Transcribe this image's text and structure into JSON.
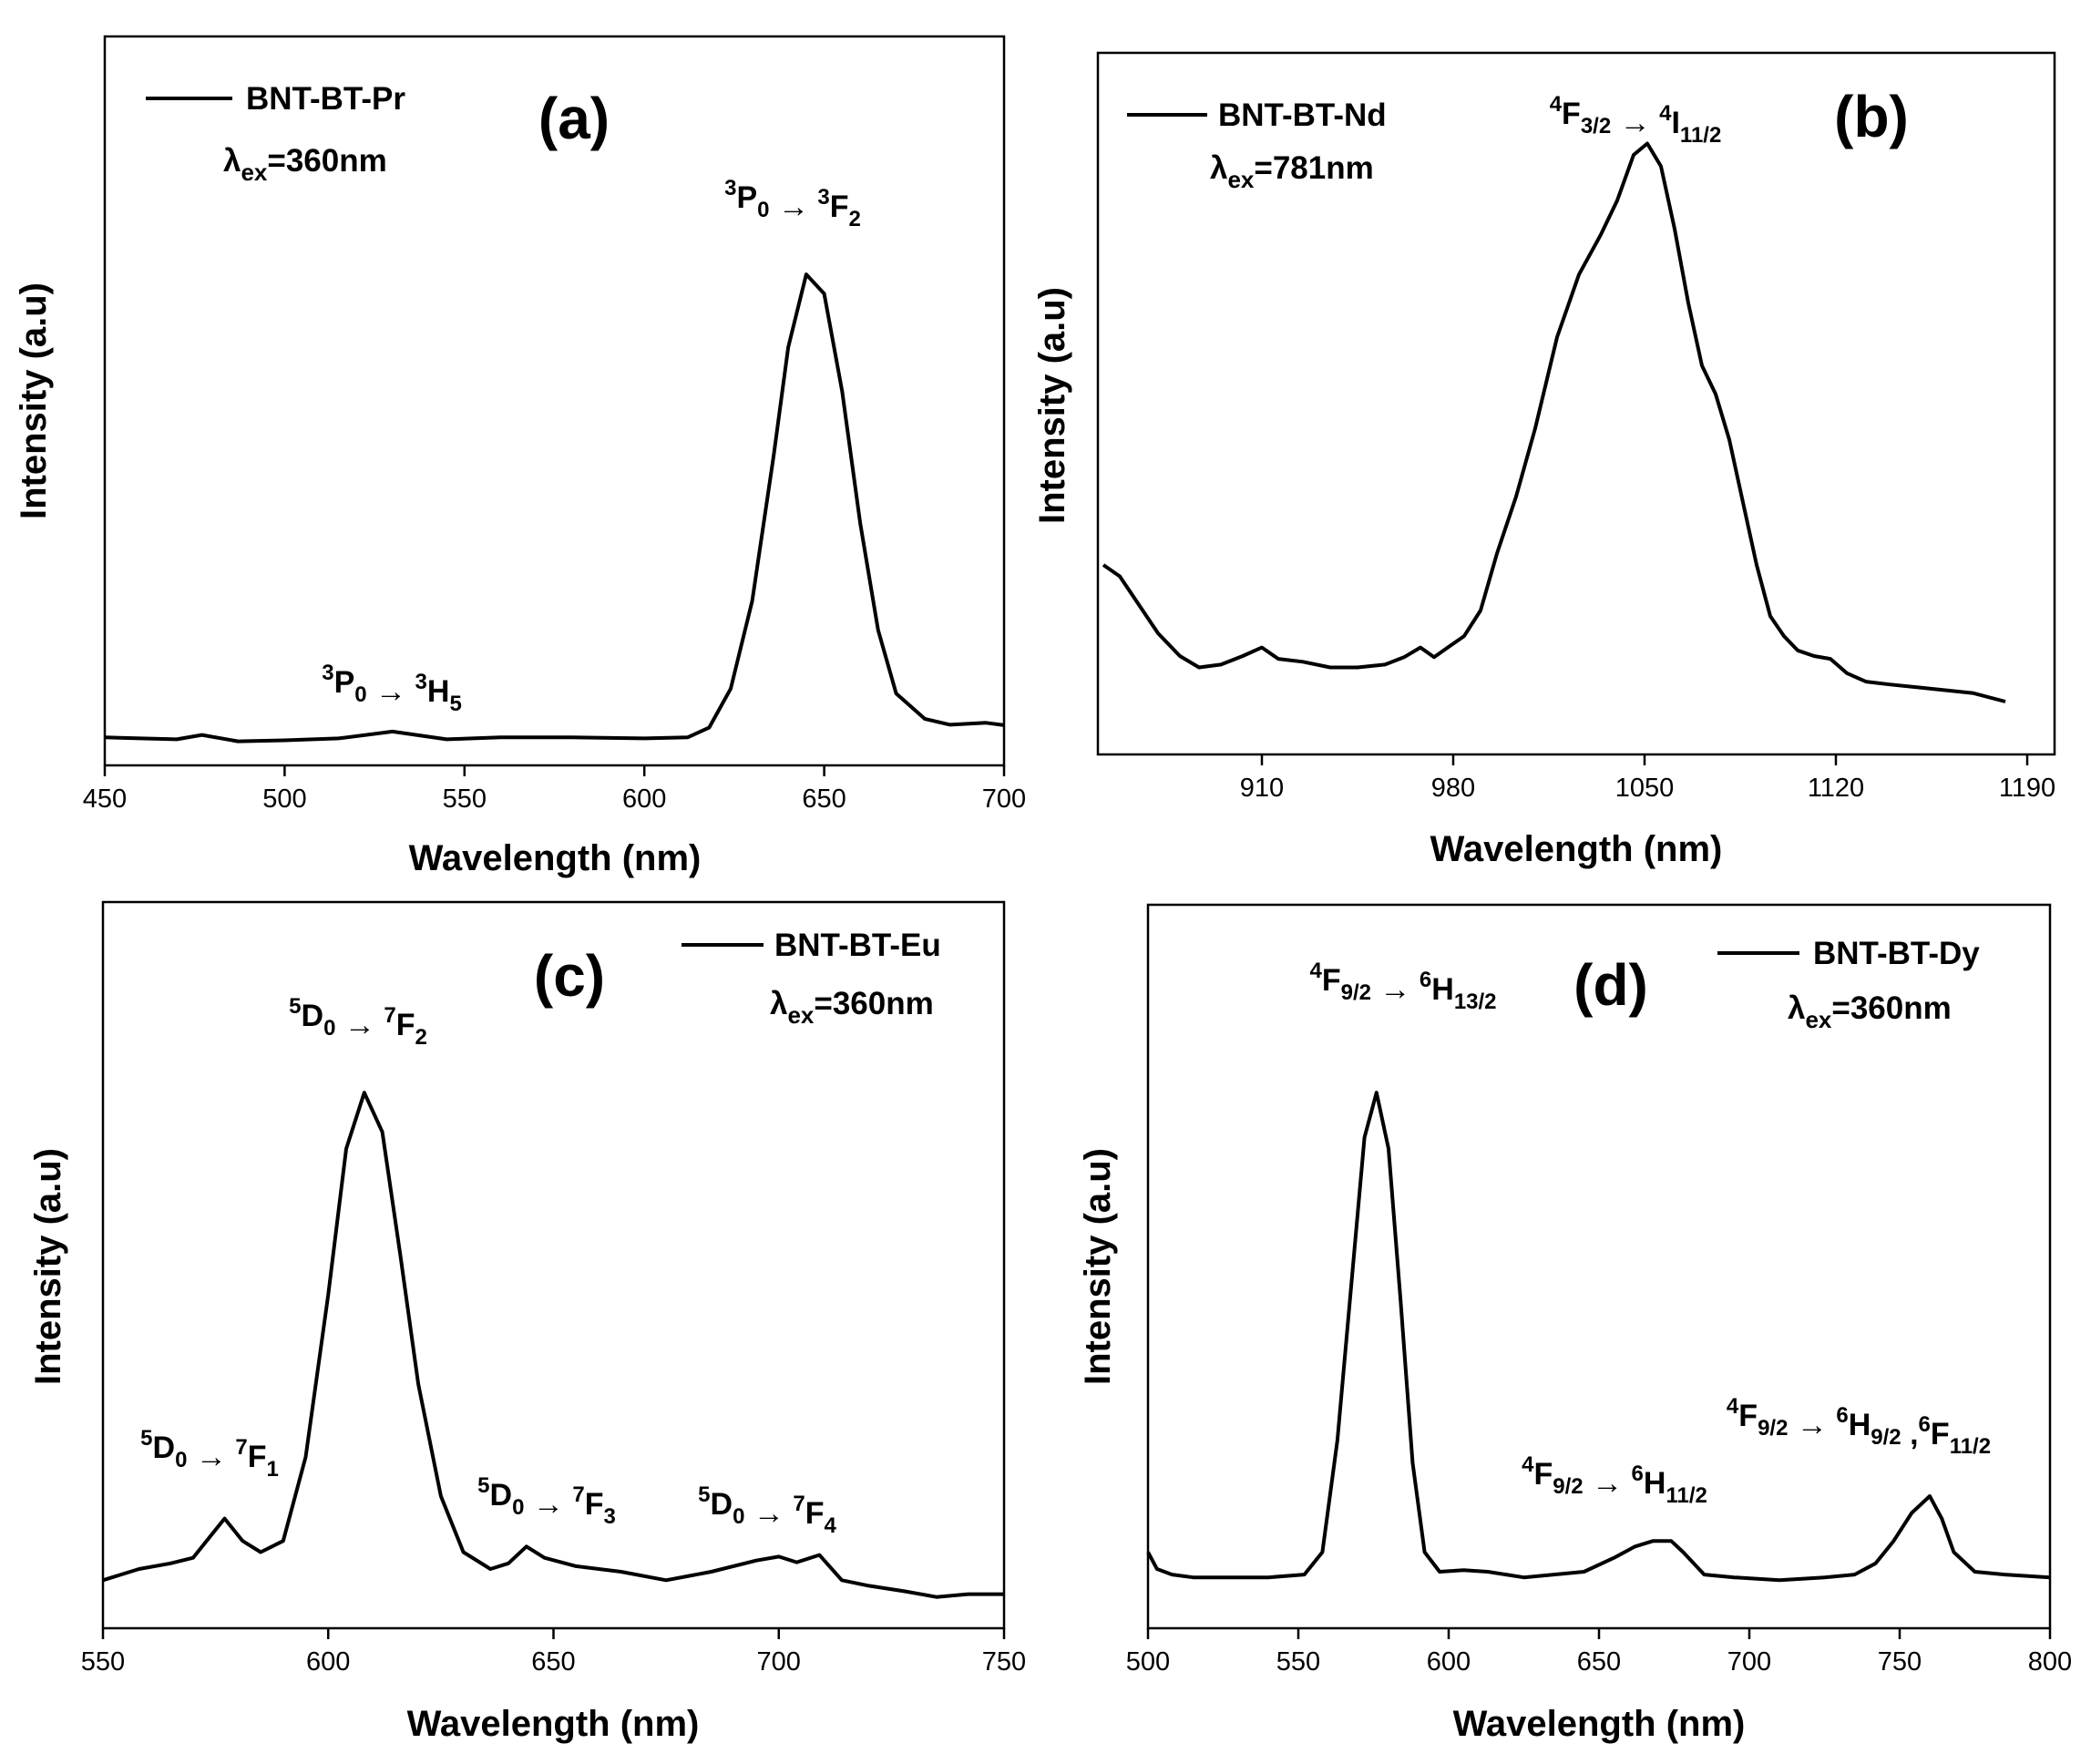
{
  "chart_data": [
    {
      "panel": "(a)",
      "type": "line",
      "xlabel": "Wavelength (nm)",
      "ylabel": "Intensity (a.u)",
      "xlim": [
        450,
        700
      ],
      "xticks": [
        "450",
        "500",
        "550",
        "600",
        "650",
        "700"
      ],
      "legend": "BNT-BT-Pr",
      "excitation": {
        "symbol": "λ",
        "sub": "ex",
        "value": "=360nm"
      },
      "series": [
        {
          "name": "BNT-BT-Pr",
          "x": [
            450,
            460,
            470,
            477,
            487,
            500,
            515,
            530,
            545,
            560,
            580,
            600,
            612,
            618,
            624,
            630,
            636,
            640,
            645,
            650,
            655,
            660,
            665,
            670,
            678,
            685,
            695,
            700
          ],
          "y": [
            0.02,
            0.018,
            0.016,
            0.025,
            0.012,
            0.014,
            0.018,
            0.032,
            0.016,
            0.02,
            0.02,
            0.018,
            0.02,
            0.04,
            0.12,
            0.3,
            0.6,
            0.82,
            0.97,
            0.93,
            0.73,
            0.46,
            0.24,
            0.11,
            0.058,
            0.046,
            0.05,
            0.045
          ]
        }
      ],
      "annotations": [
        {
          "parts": [
            "3",
            "P",
            "0",
            " → ",
            "3",
            "H",
            "5"
          ],
          "x": 530
        },
        {
          "parts": [
            "3",
            "P",
            "0",
            " → ",
            "3",
            "F",
            "2"
          ],
          "x": 645
        }
      ]
    },
    {
      "panel": "(b)",
      "type": "line",
      "xlabel": "Wavelength (nm)",
      "ylabel": "Intensity (a.u)",
      "xlim": [
        850,
        1200
      ],
      "xticks": [
        "910",
        "980",
        "1050",
        "1120",
        "1190"
      ],
      "legend": "BNT-BT-Nd",
      "excitation": {
        "symbol": "λ",
        "sub": "ex",
        "value": "=781nm"
      },
      "series": [
        {
          "name": "BNT-BT-Nd",
          "x": [
            852,
            858,
            865,
            872,
            880,
            887,
            895,
            903,
            910,
            916,
            925,
            935,
            945,
            955,
            962,
            968,
            973,
            978,
            984,
            990,
            996,
            1003,
            1010,
            1018,
            1026,
            1034,
            1040,
            1046,
            1051,
            1056,
            1061,
            1066,
            1071,
            1076,
            1081,
            1086,
            1091,
            1096,
            1101,
            1106,
            1112,
            1118,
            1124,
            1131,
            1140,
            1150,
            1160,
            1170,
            1182
          ],
          "y": [
            0.28,
            0.26,
            0.21,
            0.16,
            0.12,
            0.1,
            0.105,
            0.12,
            0.135,
            0.115,
            0.11,
            0.1,
            0.1,
            0.105,
            0.118,
            0.135,
            0.118,
            0.135,
            0.155,
            0.2,
            0.3,
            0.4,
            0.52,
            0.68,
            0.79,
            0.86,
            0.92,
            1.0,
            1.02,
            0.98,
            0.87,
            0.74,
            0.63,
            0.58,
            0.5,
            0.39,
            0.28,
            0.19,
            0.155,
            0.13,
            0.12,
            0.115,
            0.09,
            0.075,
            0.07,
            0.065,
            0.06,
            0.055,
            0.04
          ]
        }
      ],
      "annotations": [
        {
          "parts": [
            "4",
            "F",
            "3/2",
            " → ",
            "4",
            "I",
            "11/2"
          ],
          "x": 1050
        }
      ]
    },
    {
      "panel": "(c)",
      "type": "line",
      "xlabel": "Wavelength (nm)",
      "ylabel": "Intensity (a.u)",
      "xlim": [
        550,
        750
      ],
      "xticks": [
        "550",
        "600",
        "650",
        "700",
        "750"
      ],
      "legend": "BNT-BT-Eu",
      "excitation": {
        "symbol": "λ",
        "sub": "ex",
        "value": "=360nm"
      },
      "series": [
        {
          "name": "BNT-BT-Eu",
          "x": [
            550,
            558,
            565,
            570,
            574,
            577,
            581,
            585,
            590,
            595,
            600,
            604,
            608,
            612,
            616,
            620,
            625,
            630,
            636,
            640,
            644,
            648,
            655,
            665,
            675,
            685,
            695,
            700,
            704,
            709,
            714,
            720,
            728,
            735,
            742,
            750
          ],
          "y": [
            0.05,
            0.07,
            0.08,
            0.09,
            0.13,
            0.16,
            0.12,
            0.1,
            0.12,
            0.27,
            0.56,
            0.82,
            0.92,
            0.85,
            0.63,
            0.4,
            0.2,
            0.1,
            0.07,
            0.08,
            0.11,
            0.09,
            0.075,
            0.065,
            0.05,
            0.065,
            0.085,
            0.092,
            0.082,
            0.095,
            0.05,
            0.04,
            0.03,
            0.02,
            0.025,
            0.025
          ]
        }
      ],
      "annotations": [
        {
          "parts": [
            "5",
            "D",
            "0",
            " → ",
            "7",
            "F",
            "1"
          ],
          "x": 577
        },
        {
          "parts": [
            "5",
            "D",
            "0",
            " → ",
            "7",
            "F",
            "2"
          ],
          "x": 608
        },
        {
          "parts": [
            "5",
            "D",
            "0",
            " → ",
            "7",
            "F",
            "3"
          ],
          "x": 644
        },
        {
          "parts": [
            "5",
            "D",
            "0",
            " → ",
            "7",
            "F",
            "4"
          ],
          "x": 705
        }
      ]
    },
    {
      "panel": "(d)",
      "type": "line",
      "xlabel": "Wavelength (nm)",
      "ylabel": "Intensity (a.u)",
      "xlim": [
        500,
        800
      ],
      "xticks": [
        "500",
        "550",
        "600",
        "650",
        "700",
        "750",
        "800"
      ],
      "legend": "BNT-BT-Dy",
      "excitation": {
        "symbol": "λ",
        "sub": "ex",
        "value": "=360nm"
      },
      "series": [
        {
          "name": "BNT-BT-Dy",
          "x": [
            500,
            503,
            508,
            515,
            525,
            540,
            552,
            558,
            563,
            568,
            572,
            576,
            580,
            584,
            588,
            592,
            597,
            605,
            613,
            625,
            635,
            645,
            655,
            662,
            668,
            674,
            678,
            685,
            695,
            710,
            725,
            735,
            742,
            748,
            754,
            760,
            764,
            768,
            775,
            785,
            800
          ],
          "y": [
            0.1,
            0.07,
            0.06,
            0.055,
            0.055,
            0.055,
            0.06,
            0.1,
            0.3,
            0.6,
            0.84,
            0.92,
            0.82,
            0.55,
            0.26,
            0.1,
            0.065,
            0.068,
            0.065,
            0.055,
            0.06,
            0.065,
            0.09,
            0.11,
            0.12,
            0.12,
            0.1,
            0.06,
            0.055,
            0.05,
            0.055,
            0.06,
            0.08,
            0.12,
            0.17,
            0.2,
            0.16,
            0.1,
            0.065,
            0.06,
            0.055
          ]
        }
      ],
      "annotations": [
        {
          "parts": [
            "4",
            "F",
            "9/2",
            " → ",
            "6",
            "H",
            "13/2"
          ],
          "x": 576
        },
        {
          "parts": [
            "4",
            "F",
            "9/2",
            " → ",
            "6",
            "H",
            "11/2"
          ],
          "x": 670
        },
        {
          "parts": [
            "4",
            "F",
            "9/2",
            " → ",
            "6",
            "H",
            "9/2",
            " ,",
            "6",
            "F",
            "11/2"
          ],
          "x": 760
        }
      ]
    }
  ]
}
